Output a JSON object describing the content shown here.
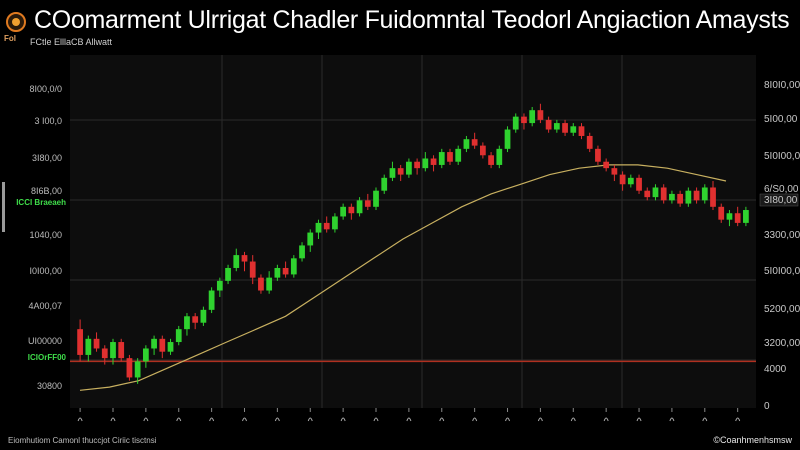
{
  "header": {
    "title": "COomarment Ulrrigat Chadler Fuidomntal Teodorl Angiaction Amaysts",
    "logo_text": "Fol",
    "subtitle": "FCtle ElllaCB Allwatt"
  },
  "footer": {
    "left": "Eiomhutiom Camonl thuccjot Ciriic tisctnsi",
    "right": "©Coanhmenhsmsw"
  },
  "colors": {
    "background": "#000000",
    "plot_background": "#0d0d0d",
    "grid": "#2a2a2a",
    "bull": "#2fd22f",
    "bear": "#e03030",
    "moving_average": "#c8b060",
    "support_line": "#b03020",
    "left_badge": "#3fdc4a"
  },
  "chart_data": {
    "type": "candlestick",
    "left_axis_labels": [
      "8I00,0/0",
      "3 I00,0",
      "3I80,00",
      "8I6B,00",
      "1040,00",
      "I0I00,00",
      "4A00,07",
      "UI00000",
      "30800"
    ],
    "left_badges": [
      "ICCI Braeaeh",
      "ICIOrFF00"
    ],
    "right_axis_labels": [
      "8I0I0,00",
      "5I00,00",
      "5I0I00,0",
      "6/S0,00",
      "3300,00",
      "5I0I00,0",
      "5200,00",
      "3200,00",
      "4000",
      "0"
    ],
    "right_badge": "3I80,00",
    "ylim": [
      0,
      100
    ],
    "moving_average": [
      3,
      4,
      6,
      10,
      14,
      18,
      22,
      26,
      32,
      38,
      44,
      50,
      55,
      60,
      64,
      67,
      70,
      72,
      73,
      73,
      72,
      70,
      68
    ],
    "support_level": 12,
    "candles": [
      {
        "o": 22.0,
        "c": 14.0,
        "h": 25.0,
        "l": 12.0
      },
      {
        "o": 14.0,
        "c": 19.0,
        "h": 20.0,
        "l": 12.0
      },
      {
        "o": 19.0,
        "c": 16.0,
        "h": 21.0,
        "l": 15.0
      },
      {
        "o": 16.0,
        "c": 13.0,
        "h": 17.0,
        "l": 11.0
      },
      {
        "o": 13.0,
        "c": 18.0,
        "h": 19.0,
        "l": 11.0
      },
      {
        "o": 18.0,
        "c": 13.0,
        "h": 19.0,
        "l": 12.0
      },
      {
        "o": 13.0,
        "c": 7.0,
        "h": 14.0,
        "l": 6.0
      },
      {
        "o": 7.0,
        "c": 12.0,
        "h": 13.0,
        "l": 5.0
      },
      {
        "o": 12.0,
        "c": 16.0,
        "h": 17.0,
        "l": 10.0
      },
      {
        "o": 16.0,
        "c": 19.0,
        "h": 20.0,
        "l": 14.0
      },
      {
        "o": 19.0,
        "c": 15.0,
        "h": 20.0,
        "l": 13.0
      },
      {
        "o": 15.0,
        "c": 18.0,
        "h": 19.0,
        "l": 14.0
      },
      {
        "o": 18.0,
        "c": 22.0,
        "h": 23.0,
        "l": 17.0
      },
      {
        "o": 22.0,
        "c": 26.0,
        "h": 27.0,
        "l": 20.0
      },
      {
        "o": 26.0,
        "c": 24.0,
        "h": 27.0,
        "l": 22.0
      },
      {
        "o": 24.0,
        "c": 28.0,
        "h": 29.0,
        "l": 23.0
      },
      {
        "o": 28.0,
        "c": 34.0,
        "h": 35.0,
        "l": 27.0
      },
      {
        "o": 34.0,
        "c": 37.0,
        "h": 38.0,
        "l": 32.0
      },
      {
        "o": 37.0,
        "c": 41.0,
        "h": 42.0,
        "l": 36.0
      },
      {
        "o": 41.0,
        "c": 45.0,
        "h": 47.0,
        "l": 40.0
      },
      {
        "o": 45.0,
        "c": 43.0,
        "h": 46.0,
        "l": 40.0
      },
      {
        "o": 43.0,
        "c": 38.0,
        "h": 45.0,
        "l": 36.0
      },
      {
        "o": 38.0,
        "c": 34.0,
        "h": 39.0,
        "l": 33.0
      },
      {
        "o": 34.0,
        "c": 38.0,
        "h": 40.0,
        "l": 33.0
      },
      {
        "o": 38.0,
        "c": 41.0,
        "h": 42.0,
        "l": 37.0
      },
      {
        "o": 41.0,
        "c": 39.0,
        "h": 43.0,
        "l": 38.0
      },
      {
        "o": 39.0,
        "c": 44.0,
        "h": 45.0,
        "l": 38.0
      },
      {
        "o": 44.0,
        "c": 48.0,
        "h": 49.0,
        "l": 43.0
      },
      {
        "o": 48.0,
        "c": 52.0,
        "h": 53.0,
        "l": 46.0
      },
      {
        "o": 52.0,
        "c": 55.0,
        "h": 56.0,
        "l": 50.0
      },
      {
        "o": 55.0,
        "c": 53.0,
        "h": 57.0,
        "l": 52.0
      },
      {
        "o": 53.0,
        "c": 57.0,
        "h": 58.0,
        "l": 52.0
      },
      {
        "o": 57.0,
        "c": 60.0,
        "h": 61.0,
        "l": 56.0
      },
      {
        "o": 60.0,
        "c": 58.0,
        "h": 61.0,
        "l": 56.0
      },
      {
        "o": 58.0,
        "c": 62.0,
        "h": 63.0,
        "l": 57.0
      },
      {
        "o": 62.0,
        "c": 60.0,
        "h": 64.0,
        "l": 59.0
      },
      {
        "o": 60.0,
        "c": 65.0,
        "h": 66.0,
        "l": 59.0
      },
      {
        "o": 65.0,
        "c": 69.0,
        "h": 70.0,
        "l": 64.0
      },
      {
        "o": 69.0,
        "c": 72.0,
        "h": 74.0,
        "l": 68.0
      },
      {
        "o": 72.0,
        "c": 70.0,
        "h": 73.0,
        "l": 68.0
      },
      {
        "o": 70.0,
        "c": 74.0,
        "h": 75.0,
        "l": 69.0
      },
      {
        "o": 74.0,
        "c": 72.0,
        "h": 75.0,
        "l": 70.0
      },
      {
        "o": 72.0,
        "c": 75.0,
        "h": 77.0,
        "l": 71.0
      },
      {
        "o": 75.0,
        "c": 73.0,
        "h": 76.0,
        "l": 71.0
      },
      {
        "o": 73.0,
        "c": 77.0,
        "h": 78.0,
        "l": 72.0
      },
      {
        "o": 77.0,
        "c": 74.0,
        "h": 78.0,
        "l": 73.0
      },
      {
        "o": 74.0,
        "c": 78.0,
        "h": 79.0,
        "l": 73.0
      },
      {
        "o": 78.0,
        "c": 81.0,
        "h": 82.0,
        "l": 77.0
      },
      {
        "o": 81.0,
        "c": 79.0,
        "h": 83.0,
        "l": 78.0
      },
      {
        "o": 79.0,
        "c": 76.0,
        "h": 80.0,
        "l": 75.0
      },
      {
        "o": 76.0,
        "c": 73.0,
        "h": 77.0,
        "l": 72.0
      },
      {
        "o": 73.0,
        "c": 78.0,
        "h": 79.0,
        "l": 72.0
      },
      {
        "o": 78.0,
        "c": 84.0,
        "h": 85.0,
        "l": 77.0
      },
      {
        "o": 84.0,
        "c": 88.0,
        "h": 89.0,
        "l": 83.0
      },
      {
        "o": 88.0,
        "c": 86.0,
        "h": 89.0,
        "l": 84.0
      },
      {
        "o": 86.0,
        "c": 90.0,
        "h": 91.0,
        "l": 85.0
      },
      {
        "o": 90.0,
        "c": 87.0,
        "h": 92.0,
        "l": 86.0
      },
      {
        "o": 87.0,
        "c": 84.0,
        "h": 88.0,
        "l": 83.0
      },
      {
        "o": 84.0,
        "c": 86.0,
        "h": 87.0,
        "l": 83.0
      },
      {
        "o": 86.0,
        "c": 83.0,
        "h": 87.0,
        "l": 82.0
      },
      {
        "o": 83.0,
        "c": 85.0,
        "h": 86.0,
        "l": 82.0
      },
      {
        "o": 85.0,
        "c": 82.0,
        "h": 86.0,
        "l": 81.0
      },
      {
        "o": 82.0,
        "c": 78.0,
        "h": 83.0,
        "l": 77.0
      },
      {
        "o": 78.0,
        "c": 74.0,
        "h": 79.0,
        "l": 73.0
      },
      {
        "o": 74.0,
        "c": 72.0,
        "h": 75.0,
        "l": 71.0
      },
      {
        "o": 72.0,
        "c": 70.0,
        "h": 73.0,
        "l": 68.0
      },
      {
        "o": 70.0,
        "c": 67.0,
        "h": 71.0,
        "l": 65.0
      },
      {
        "o": 67.0,
        "c": 69.0,
        "h": 70.0,
        "l": 66.0
      },
      {
        "o": 69.0,
        "c": 65.0,
        "h": 70.0,
        "l": 64.0
      },
      {
        "o": 65.0,
        "c": 63.0,
        "h": 66.0,
        "l": 62.0
      },
      {
        "o": 63.0,
        "c": 66.0,
        "h": 67.0,
        "l": 62.0
      },
      {
        "o": 66.0,
        "c": 62.0,
        "h": 67.0,
        "l": 61.0
      },
      {
        "o": 62.0,
        "c": 64.0,
        "h": 65.0,
        "l": 61.0
      },
      {
        "o": 64.0,
        "c": 61.0,
        "h": 65.0,
        "l": 60.0
      },
      {
        "o": 61.0,
        "c": 65.0,
        "h": 66.0,
        "l": 60.0
      },
      {
        "o": 65.0,
        "c": 62.0,
        "h": 66.0,
        "l": 61.0
      },
      {
        "o": 62.0,
        "c": 66.0,
        "h": 67.0,
        "l": 61.0
      },
      {
        "o": 66.0,
        "c": 60.0,
        "h": 68.0,
        "l": 59.0
      },
      {
        "o": 60.0,
        "c": 56.0,
        "h": 61.0,
        "l": 55.0
      },
      {
        "o": 56.0,
        "c": 58.0,
        "h": 59.0,
        "l": 54.0
      },
      {
        "o": 58.0,
        "c": 55.0,
        "h": 60.0,
        "l": 54.0
      },
      {
        "o": 55.0,
        "c": 59.0,
        "h": 60.0,
        "l": 54.0
      }
    ]
  }
}
